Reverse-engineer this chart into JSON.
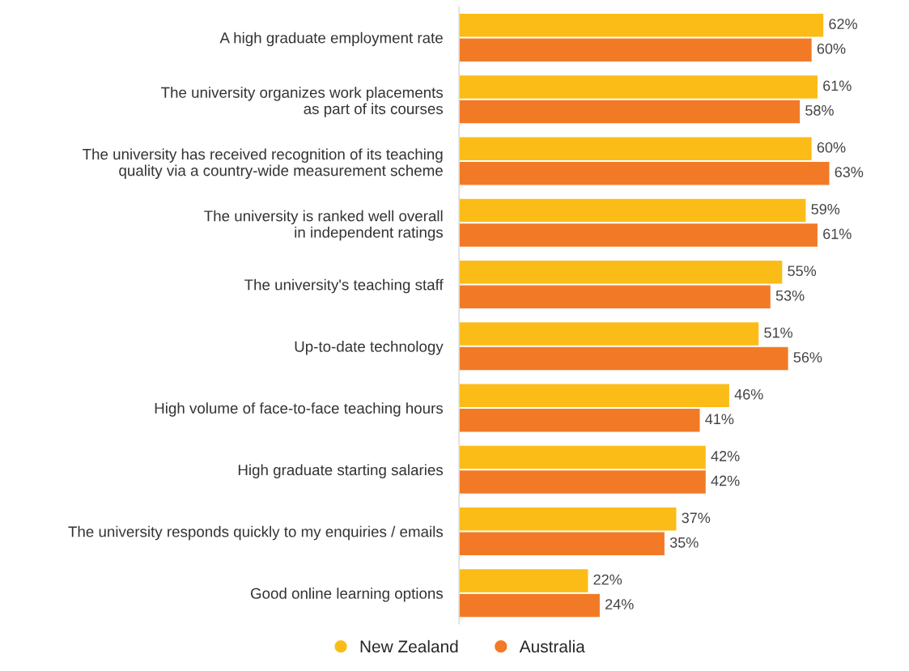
{
  "chart_data": {
    "type": "bar",
    "orientation": "horizontal",
    "categories": [
      "A high graduate employment rate",
      "The university organizes work placements\nas part of its courses",
      "The university has received recognition of its teaching\nquality via a country-wide measurement scheme",
      "The university is ranked well overall\nin independent ratings",
      "The university's teaching staff",
      "Up-to-date technology",
      "High volume of face-to-face teaching hours",
      "High graduate starting salaries",
      "The university responds quickly to my enquiries / emails",
      "Good online learning options"
    ],
    "series": [
      {
        "name": "New Zealand",
        "color": "#fbbc18",
        "values": [
          62,
          61,
          60,
          59,
          55,
          51,
          46,
          42,
          37,
          22
        ],
        "value_labels": [
          "62%",
          "61%",
          "60%",
          "59%",
          "55%",
          "51%",
          "46%",
          "42%",
          "37%",
          "22%"
        ]
      },
      {
        "name": "Australia",
        "color": "#f27a26",
        "values": [
          60,
          58,
          63,
          61,
          53,
          56,
          41,
          42,
          35,
          24
        ],
        "value_labels": [
          "60%",
          "58%",
          "63%",
          "61%",
          "53%",
          "56%",
          "41%",
          "42%",
          "35%",
          "24%"
        ]
      }
    ],
    "legend": "bottom",
    "grid": false
  }
}
